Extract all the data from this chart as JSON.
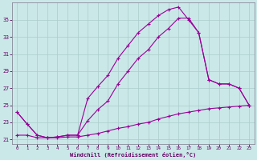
{
  "xlabel": "Windchill (Refroidissement éolien,°C)",
  "background_color": "#cbe8e8",
  "line_color": "#990099",
  "xlim": [
    -0.5,
    23.5
  ],
  "ylim": [
    20.5,
    37.0
  ],
  "xticks": [
    0,
    1,
    2,
    3,
    4,
    5,
    6,
    7,
    8,
    9,
    10,
    11,
    12,
    13,
    14,
    15,
    16,
    17,
    18,
    19,
    20,
    21,
    22,
    23
  ],
  "yticks": [
    21,
    23,
    25,
    27,
    29,
    31,
    33,
    35
  ],
  "line_bottom_x": [
    0,
    1,
    2,
    3,
    4,
    5,
    6,
    7,
    8,
    9,
    10,
    11,
    12,
    13,
    14,
    15,
    16,
    17,
    18,
    19,
    20,
    21,
    22,
    23
  ],
  "line_bottom_y": [
    21.5,
    21.5,
    21.2,
    21.2,
    21.2,
    21.3,
    21.3,
    21.5,
    21.7,
    22.0,
    22.3,
    22.5,
    22.8,
    23.0,
    23.4,
    23.7,
    24.0,
    24.2,
    24.4,
    24.6,
    24.7,
    24.8,
    24.9,
    25.0
  ],
  "line_mid_x": [
    0,
    1,
    2,
    3,
    4,
    5,
    6,
    7,
    8,
    9,
    10,
    11,
    12,
    13,
    14,
    15,
    16,
    17,
    18,
    19,
    20,
    21,
    22,
    23
  ],
  "line_mid_y": [
    24.2,
    22.8,
    21.5,
    21.2,
    21.3,
    21.5,
    21.5,
    23.2,
    24.5,
    25.5,
    27.5,
    29.0,
    30.5,
    31.5,
    33.0,
    34.0,
    35.2,
    35.2,
    33.5,
    28.0,
    27.5,
    27.5,
    27.0,
    25.0
  ],
  "line_top_x": [
    0,
    1,
    2,
    3,
    4,
    5,
    6,
    7,
    8,
    9,
    10,
    11,
    12,
    13,
    14,
    15,
    16,
    17,
    18,
    19,
    20,
    21,
    22,
    23
  ],
  "line_top_y": [
    24.2,
    22.8,
    21.5,
    21.2,
    21.3,
    21.5,
    21.5,
    25.8,
    27.2,
    28.5,
    30.5,
    32.0,
    33.5,
    34.5,
    35.5,
    36.2,
    36.5,
    35.0,
    33.5,
    28.0,
    27.5,
    27.5,
    27.0,
    25.0
  ]
}
